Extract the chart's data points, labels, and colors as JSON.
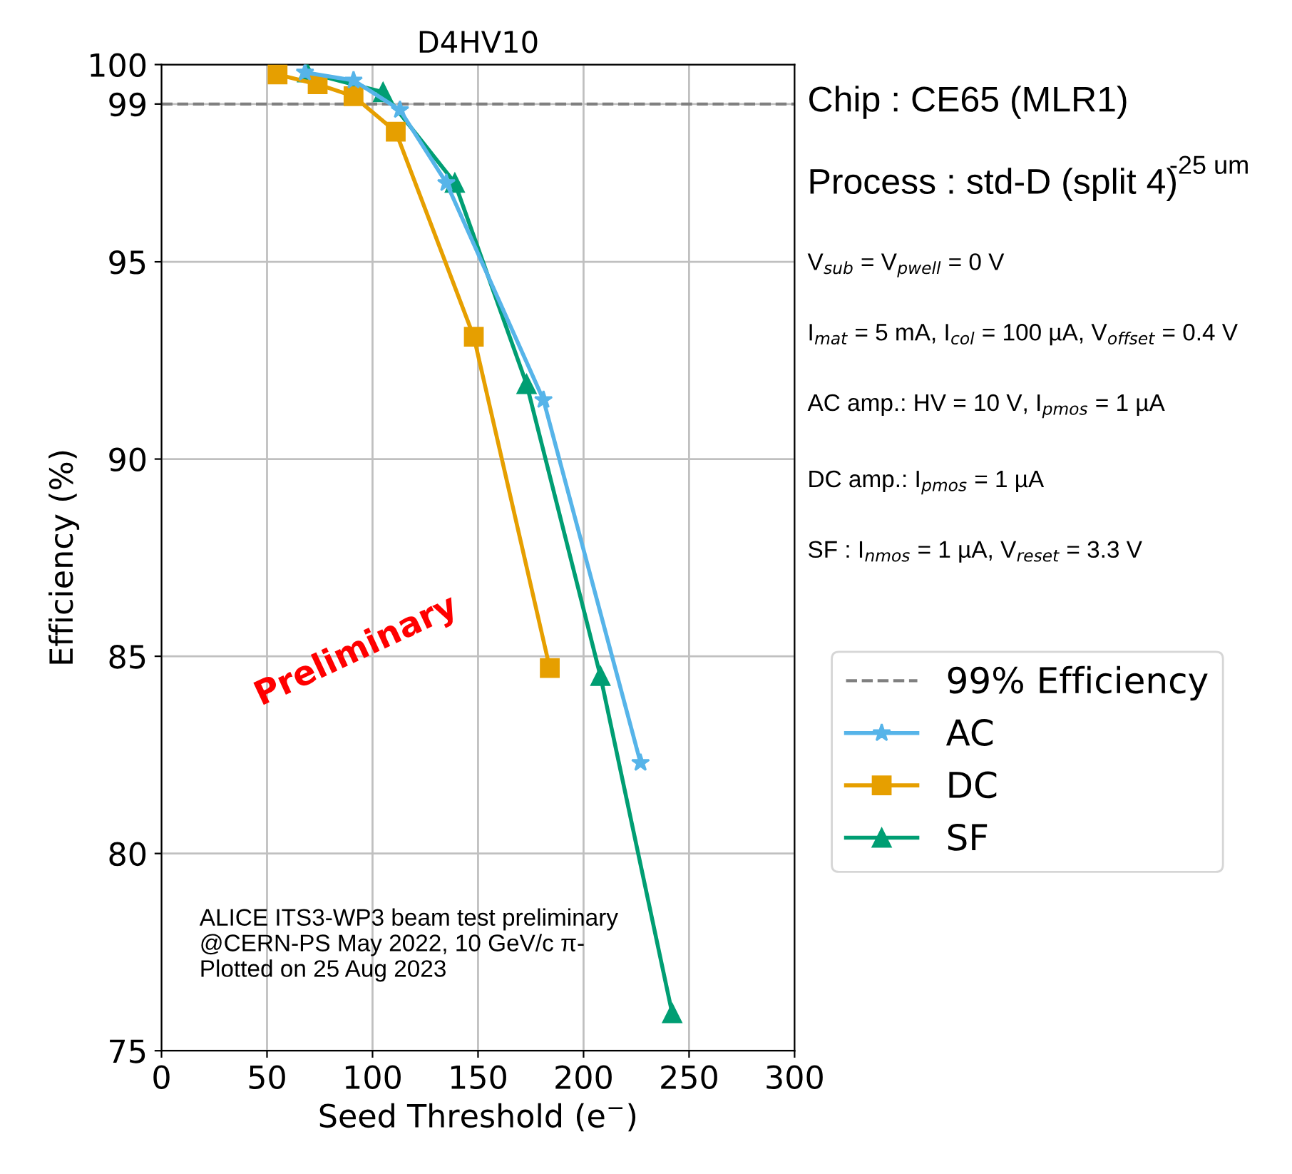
{
  "chart_data": {
    "type": "line",
    "title": "D4HV10",
    "xlabel": "Seed Threshold (e$^{−}$)",
    "ylabel": "Efficiency (%)",
    "xlim": [
      0,
      300
    ],
    "xticks": [
      0,
      50,
      100,
      150,
      200,
      250,
      300
    ],
    "ylim": [
      75,
      100
    ],
    "yticks": [
      75,
      80,
      85,
      90,
      95,
      99,
      100
    ],
    "grid": true,
    "legend": "right",
    "series": [
      {
        "name": "AC",
        "color": "#56b4e9",
        "marker": "star",
        "x": [
          68,
          91,
          113,
          135,
          181,
          227
        ],
        "values": [
          99.8,
          99.6,
          98.85,
          97.0,
          91.5,
          82.3
        ]
      },
      {
        "name": "DC",
        "color": "#e69f00",
        "marker": "square",
        "x": [
          55,
          74,
          91,
          111,
          148,
          184
        ],
        "values": [
          99.75,
          99.5,
          99.2,
          98.3,
          93.1,
          84.7
        ]
      },
      {
        "name": "SF",
        "color": "#009e73",
        "marker": "triangle",
        "x": [
          69,
          105,
          139,
          173,
          208,
          242
        ],
        "values": [
          99.8,
          99.3,
          97.0,
          91.9,
          84.5,
          75.95
        ]
      }
    ],
    "ref_lines": [
      {
        "axis": "y",
        "value": 99,
        "label": "99% Efficiency",
        "color": "#808080",
        "line_style": "dashed"
      }
    ],
    "annotations": [
      "Chip : CE65 (MLR1)",
      "Process : std-D (split 4)",
      "-25 um",
      "V$_{sub}$ = V$_{pwell}$ = 0 V",
      "I$_{mat}$ = 5 mA, I$_{col}$ = 100 µA, V$_{offset}$ = 0.4 V",
      "AC amp.: HV = 10 V, I$_{pmos}$ = 1 µA",
      "DC amp.: I$_{pmos}$ = 1 µA",
      "SF : I$_{nmos}$ = 1 µA, V$_{reset}$ = 3.3 V",
      "Preliminary",
      "ALICE ITS3-WP3 beam test preliminary\n@CERN-PS May 2022, 10 GeV/c π-\nPlotted on 25 Aug 2023"
    ]
  }
}
